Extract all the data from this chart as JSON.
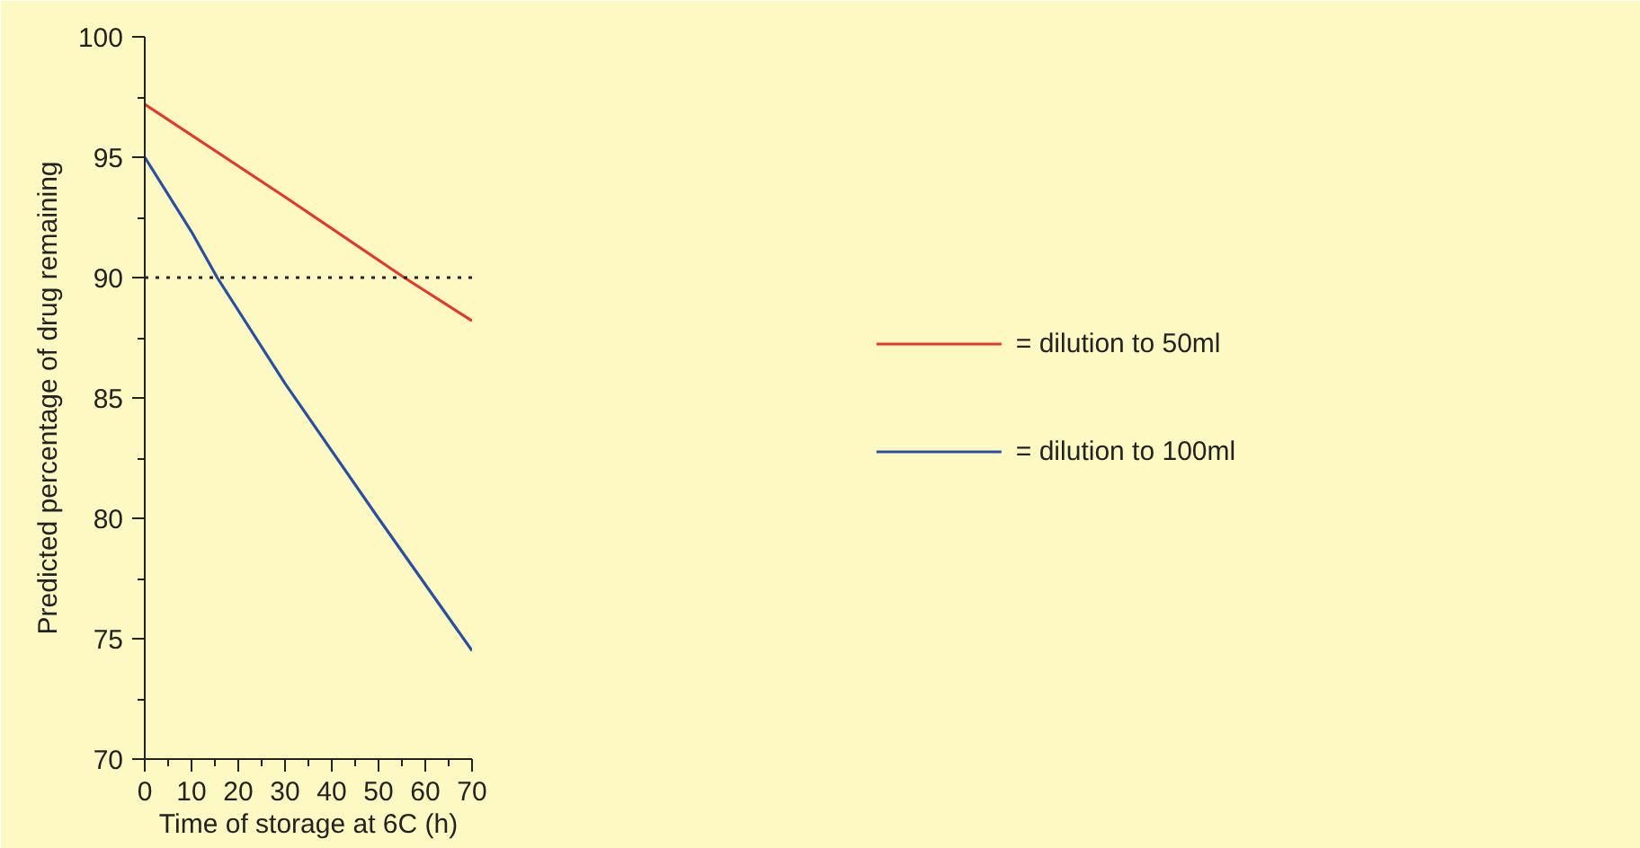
{
  "chart_data": {
    "type": "line",
    "xlabel": "Time of storage at 6C (h)",
    "ylabel": "Predicted percentage of drug remaining",
    "xlim": [
      0,
      70
    ],
    "ylim": [
      70,
      100
    ],
    "xticks": [
      0,
      10,
      20,
      30,
      40,
      50,
      60,
      70
    ],
    "yticks": [
      70,
      75,
      80,
      85,
      90,
      95,
      100
    ],
    "series": [
      {
        "name": "= dilution to 50ml",
        "color": "#e03a2e",
        "x": [
          0,
          30,
          55.5,
          70
        ],
        "values": [
          97.2,
          93.35,
          90,
          88.2
        ]
      },
      {
        "name": "= dilution to 100ml",
        "color": "#2a4fa0",
        "x": [
          0,
          10,
          15.5,
          30,
          50,
          70
        ],
        "values": [
          95,
          91.9,
          90,
          85.6,
          80,
          74.5
        ]
      }
    ],
    "ref_lines": [
      {
        "axis": "y",
        "value": 90,
        "label": null,
        "color": "#222222",
        "line_style": "dotted"
      }
    ],
    "grid": false,
    "legend": "right",
    "marker": "none",
    "line_style": "solid"
  }
}
